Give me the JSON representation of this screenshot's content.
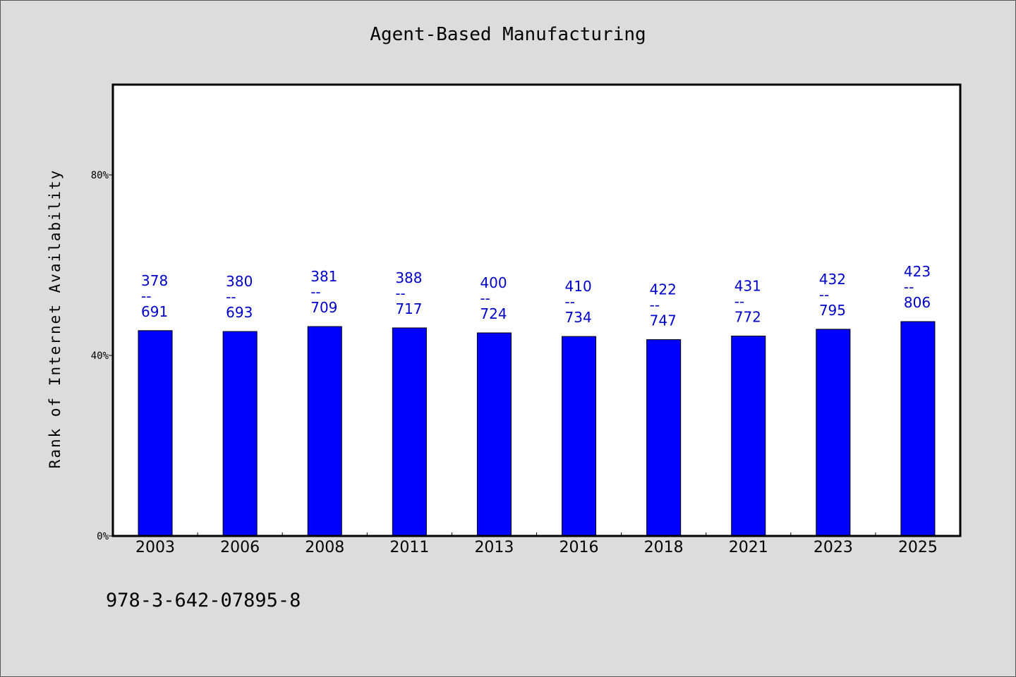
{
  "chart_data": {
    "type": "bar",
    "title": "Agent-Based Manufacturing",
    "xlabel": "",
    "ylabel": "Rank of Internet Availability",
    "categories": [
      "2003",
      "2006",
      "2008",
      "2011",
      "2013",
      "2016",
      "2018",
      "2021",
      "2023",
      "2025"
    ],
    "values": [
      45.5,
      45.3,
      46.4,
      46.1,
      45.0,
      44.2,
      43.5,
      44.3,
      45.8,
      47.5
    ],
    "data_labels": [
      [
        "378",
        "--",
        "691"
      ],
      [
        "380",
        "--",
        "693"
      ],
      [
        "381",
        "--",
        "709"
      ],
      [
        "388",
        "--",
        "717"
      ],
      [
        "400",
        "--",
        "724"
      ],
      [
        "410",
        "--",
        "734"
      ],
      [
        "422",
        "--",
        "747"
      ],
      [
        "431",
        "--",
        "772"
      ],
      [
        "432",
        "--",
        "795"
      ],
      [
        "423",
        "--",
        "806"
      ]
    ],
    "ylim": [
      0,
      100
    ],
    "yticks": [
      0,
      40,
      80
    ],
    "ytick_labels": [
      "0%",
      "40%",
      "80%"
    ],
    "bar_color": "#0000ff",
    "label_color": "#0000cc",
    "grid": false,
    "legend": "none"
  },
  "footer": {
    "isbn": "978-3-642-07895-8"
  }
}
